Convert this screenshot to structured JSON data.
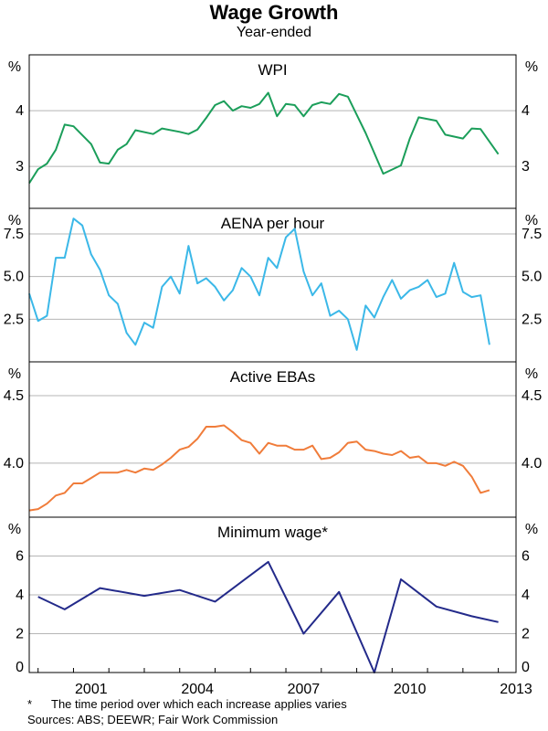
{
  "chart_data": {
    "title": "Wage Growth",
    "subtitle": "Year-ended",
    "type": "line",
    "unit_label": "%",
    "x_tick_labels": [
      "2001",
      "2004",
      "2007",
      "2010",
      "2013"
    ],
    "footnote_mark": "*",
    "footnote": "The time period over which each increase applies varies",
    "sources": "Sources: ABS; DEEWR; Fair Work Commission",
    "panels": [
      {
        "name": "WPI",
        "color": "#1b9e5a",
        "ylim": [
          2.25,
          5.0
        ],
        "ticks": [
          3,
          4
        ],
        "tick_labels": [
          "3",
          "4"
        ],
        "series": [
          [
            1999.75,
            2.7
          ],
          [
            2000.0,
            2.95
          ],
          [
            2000.25,
            3.05
          ],
          [
            2000.5,
            3.3
          ],
          [
            2000.75,
            3.75
          ],
          [
            2001.0,
            3.72
          ],
          [
            2001.5,
            3.4
          ],
          [
            2001.75,
            3.07
          ],
          [
            2002.0,
            3.05
          ],
          [
            2002.25,
            3.3
          ],
          [
            2002.5,
            3.4
          ],
          [
            2002.75,
            3.65
          ],
          [
            2003.25,
            3.58
          ],
          [
            2003.5,
            3.68
          ],
          [
            2004.0,
            3.62
          ],
          [
            2004.25,
            3.58
          ],
          [
            2004.5,
            3.66
          ],
          [
            2004.75,
            3.87
          ],
          [
            2005.0,
            4.1
          ],
          [
            2005.25,
            4.17
          ],
          [
            2005.5,
            4.0
          ],
          [
            2005.75,
            4.08
          ],
          [
            2006.0,
            4.05
          ],
          [
            2006.25,
            4.12
          ],
          [
            2006.5,
            4.32
          ],
          [
            2006.75,
            3.9
          ],
          [
            2007.0,
            4.12
          ],
          [
            2007.25,
            4.1
          ],
          [
            2007.5,
            3.9
          ],
          [
            2007.75,
            4.1
          ],
          [
            2008.0,
            4.15
          ],
          [
            2008.25,
            4.12
          ],
          [
            2008.5,
            4.3
          ],
          [
            2008.75,
            4.25
          ],
          [
            2009.25,
            3.6
          ],
          [
            2009.75,
            2.87
          ],
          [
            2010.25,
            3.02
          ],
          [
            2010.5,
            3.5
          ],
          [
            2010.75,
            3.88
          ],
          [
            2011.25,
            3.82
          ],
          [
            2011.5,
            3.57
          ],
          [
            2012.0,
            3.5
          ],
          [
            2012.25,
            3.68
          ],
          [
            2012.5,
            3.67
          ],
          [
            2013.0,
            3.22
          ]
        ]
      },
      {
        "name": "AENA per hour",
        "color": "#3bb8e8",
        "ylim": [
          0,
          9.0
        ],
        "ticks": [
          2.5,
          5.0,
          7.5
        ],
        "tick_labels": [
          "2.5",
          "5.0",
          "7.5"
        ],
        "series": [
          [
            1999.75,
            4.0
          ],
          [
            2000.0,
            2.4
          ],
          [
            2000.25,
            2.7
          ],
          [
            2000.5,
            6.1
          ],
          [
            2000.75,
            6.1
          ],
          [
            2001.0,
            8.4
          ],
          [
            2001.25,
            8.0
          ],
          [
            2001.5,
            6.3
          ],
          [
            2001.75,
            5.4
          ],
          [
            2002.0,
            3.9
          ],
          [
            2002.25,
            3.4
          ],
          [
            2002.5,
            1.7
          ],
          [
            2002.75,
            1.0
          ],
          [
            2003.0,
            2.3
          ],
          [
            2003.25,
            2.0
          ],
          [
            2003.5,
            4.4
          ],
          [
            2003.75,
            5.0
          ],
          [
            2004.0,
            4.0
          ],
          [
            2004.25,
            6.8
          ],
          [
            2004.5,
            4.6
          ],
          [
            2004.75,
            4.9
          ],
          [
            2005.0,
            4.4
          ],
          [
            2005.25,
            3.6
          ],
          [
            2005.5,
            4.2
          ],
          [
            2005.75,
            5.5
          ],
          [
            2006.0,
            5.0
          ],
          [
            2006.25,
            3.9
          ],
          [
            2006.5,
            6.1
          ],
          [
            2006.75,
            5.5
          ],
          [
            2007.0,
            7.3
          ],
          [
            2007.25,
            7.8
          ],
          [
            2007.5,
            5.3
          ],
          [
            2007.75,
            3.9
          ],
          [
            2008.0,
            4.6
          ],
          [
            2008.25,
            2.7
          ],
          [
            2008.5,
            3.0
          ],
          [
            2008.75,
            2.5
          ],
          [
            2009.0,
            0.7
          ],
          [
            2009.25,
            3.3
          ],
          [
            2009.5,
            2.6
          ],
          [
            2009.75,
            3.8
          ],
          [
            2010.0,
            4.8
          ],
          [
            2010.25,
            3.7
          ],
          [
            2010.5,
            4.2
          ],
          [
            2010.75,
            4.4
          ],
          [
            2011.0,
            4.8
          ],
          [
            2011.25,
            3.8
          ],
          [
            2011.5,
            4.0
          ],
          [
            2011.75,
            5.8
          ],
          [
            2012.0,
            4.1
          ],
          [
            2012.25,
            3.8
          ],
          [
            2012.5,
            3.9
          ],
          [
            2012.75,
            1.0
          ]
        ]
      },
      {
        "name": "Active EBAs",
        "color": "#f07c3a",
        "ylim": [
          3.6,
          4.75
        ],
        "ticks": [
          4.0,
          4.5
        ],
        "tick_labels": [
          "4.0",
          "4.5"
        ],
        "series": [
          [
            1999.75,
            3.65
          ],
          [
            2000.0,
            3.66
          ],
          [
            2000.25,
            3.7
          ],
          [
            2000.5,
            3.76
          ],
          [
            2000.75,
            3.78
          ],
          [
            2001.0,
            3.85
          ],
          [
            2001.25,
            3.85
          ],
          [
            2001.5,
            3.89
          ],
          [
            2001.75,
            3.93
          ],
          [
            2002.0,
            3.93
          ],
          [
            2002.25,
            3.93
          ],
          [
            2002.5,
            3.95
          ],
          [
            2002.75,
            3.93
          ],
          [
            2003.0,
            3.96
          ],
          [
            2003.25,
            3.95
          ],
          [
            2003.5,
            3.99
          ],
          [
            2003.75,
            4.04
          ],
          [
            2004.0,
            4.1
          ],
          [
            2004.25,
            4.12
          ],
          [
            2004.5,
            4.18
          ],
          [
            2004.75,
            4.27
          ],
          [
            2005.0,
            4.27
          ],
          [
            2005.25,
            4.28
          ],
          [
            2005.5,
            4.23
          ],
          [
            2005.75,
            4.17
          ],
          [
            2006.0,
            4.15
          ],
          [
            2006.25,
            4.07
          ],
          [
            2006.5,
            4.15
          ],
          [
            2006.75,
            4.13
          ],
          [
            2007.0,
            4.13
          ],
          [
            2007.25,
            4.1
          ],
          [
            2007.5,
            4.1
          ],
          [
            2007.75,
            4.13
          ],
          [
            2008.0,
            4.03
          ],
          [
            2008.25,
            4.04
          ],
          [
            2008.5,
            4.08
          ],
          [
            2008.75,
            4.15
          ],
          [
            2009.0,
            4.16
          ],
          [
            2009.25,
            4.1
          ],
          [
            2009.5,
            4.09
          ],
          [
            2009.75,
            4.07
          ],
          [
            2010.0,
            4.06
          ],
          [
            2010.25,
            4.09
          ],
          [
            2010.5,
            4.04
          ],
          [
            2010.75,
            4.05
          ],
          [
            2011.0,
            4.0
          ],
          [
            2011.25,
            4.0
          ],
          [
            2011.5,
            3.98
          ],
          [
            2011.75,
            4.01
          ],
          [
            2012.0,
            3.98
          ],
          [
            2012.25,
            3.9
          ],
          [
            2012.5,
            3.78
          ],
          [
            2012.75,
            3.8
          ]
        ]
      },
      {
        "name": "Minimum wage*",
        "color": "#232a8a",
        "ylim": [
          0,
          8
        ],
        "ticks": [
          0,
          2,
          4,
          6
        ],
        "tick_labels": [
          "0",
          "2",
          "4",
          "6"
        ],
        "series": [
          [
            2000.0,
            3.9
          ],
          [
            2000.75,
            3.25
          ],
          [
            2001.75,
            4.35
          ],
          [
            2003.0,
            3.95
          ],
          [
            2004.0,
            4.25
          ],
          [
            2005.0,
            3.65
          ],
          [
            2006.5,
            5.7
          ],
          [
            2007.5,
            2.0
          ],
          [
            2008.5,
            4.15
          ],
          [
            2009.5,
            0.0
          ],
          [
            2010.25,
            4.8
          ],
          [
            2011.25,
            3.4
          ],
          [
            2012.25,
            2.9
          ],
          [
            2013.0,
            2.6
          ]
        ]
      }
    ],
    "xlim": [
      1999.75,
      2013.5
    ],
    "x_ticks": [
      2001,
      2004,
      2007,
      2010,
      2013
    ]
  }
}
